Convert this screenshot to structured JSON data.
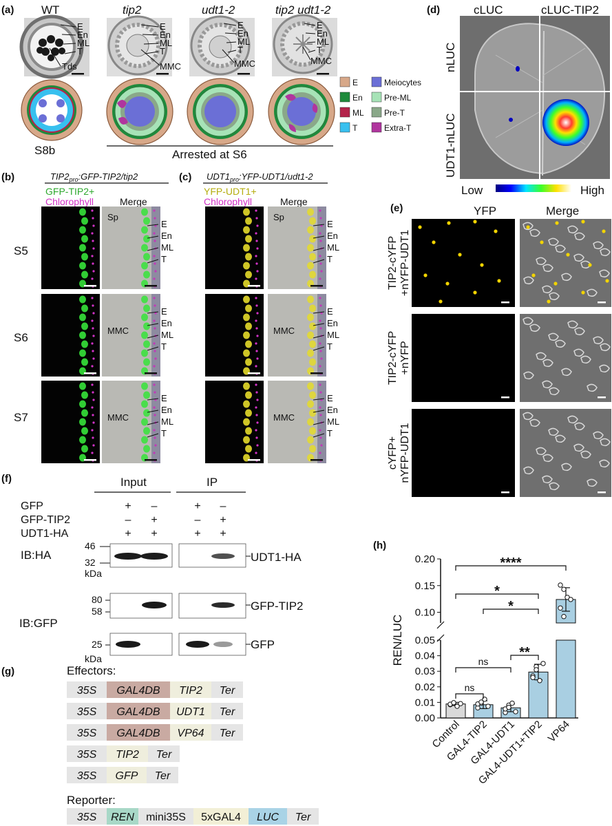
{
  "panel_labels": {
    "a": "(a)",
    "b": "(b)",
    "c": "(c)",
    "d": "(d)",
    "e": "(e)",
    "f": "(f)",
    "g": "(g)",
    "h": "(h)"
  },
  "panel_a": {
    "columns": [
      "WT",
      "tip2",
      "udt1-2",
      "tip2 udt1-2"
    ],
    "layer_labels": [
      "E",
      "En",
      "ML",
      "T"
    ],
    "tds": "Tds",
    "mmc": "MMC",
    "stage_wt": "S8b",
    "arrested": "Arrested at S6",
    "legend": [
      {
        "label": "E",
        "color": "#d7a889"
      },
      {
        "label": "En",
        "color": "#1f8a3c"
      },
      {
        "label": "ML",
        "color": "#b3234a"
      },
      {
        "label": "T",
        "color": "#38c0ef"
      },
      {
        "label": "Meiocytes",
        "color": "#6b6fd6"
      },
      {
        "label": "Pre-ML",
        "color": "#a7e3b7"
      },
      {
        "label": "Pre-T",
        "color": "#8aa889"
      },
      {
        "label": "Extra-T",
        "color": "#b0359e"
      }
    ]
  },
  "panel_b": {
    "title_main": "TIP2",
    "title_sub": "pro",
    "title_rest": ":GFP-TIP2/tip2",
    "channel1": "GFP-TIP2+",
    "channel2": "Chlorophyll",
    "merge": "Merge",
    "rows": [
      "S5",
      "S6",
      "S7"
    ],
    "sp": "Sp",
    "mmc": "MMC"
  },
  "panel_c": {
    "title_main": "UDT1",
    "title_sub": "pro",
    "title_rest": ":YFP-UDT1/udt1-2",
    "channel1": "YFP-UDT1+",
    "channel2": "Chlorophyll",
    "merge": "Merge",
    "sp": "Sp",
    "mmc": "MMC"
  },
  "panel_d": {
    "col1": "cLUC",
    "col2": "cLUC-TIP2",
    "row1": "nLUC",
    "row2": "UDT1-nLUC",
    "low": "Low",
    "high": "High"
  },
  "panel_e": {
    "col1": "YFP",
    "col2": "Merge",
    "rows": [
      [
        "TIP2-cYFP",
        "+nYFP-UDT1"
      ],
      [
        "TIP2-cYFP",
        "+nYFP"
      ],
      [
        "cYFP+",
        "nYFP-UDT1"
      ]
    ]
  },
  "panel_f": {
    "input": "Input",
    "ip": "IP",
    "row_labels": [
      "GFP",
      "GFP-TIP2",
      "UDT1-HA"
    ],
    "signs": [
      [
        "+",
        "–",
        "+",
        "–"
      ],
      [
        "–",
        "+",
        "–",
        "+"
      ],
      [
        "+",
        "+",
        "+",
        "+"
      ]
    ],
    "ib_ha": "IB:HA",
    "ib_gfp": "IB:GFP",
    "mw_ha": [
      "46",
      "32"
    ],
    "kda": "kDa",
    "mw_gfp_top": [
      "80",
      "58"
    ],
    "mw_gfp_bottom": "25",
    "bands": [
      "UDT1-HA",
      "GFP-TIP2",
      "GFP"
    ]
  },
  "panel_g": {
    "effectors_title": "Effectors:",
    "reporter_title": "Reporter:",
    "effectors": [
      [
        "35S",
        "GAL4DB",
        "TIP2",
        "Ter"
      ],
      [
        "35S",
        "GAL4DB",
        "UDT1",
        "Ter"
      ],
      [
        "35S",
        "GAL4DB",
        "VP64",
        "Ter"
      ],
      [
        "35S",
        "TIP2",
        "Ter"
      ],
      [
        "35S",
        "GFP",
        "Ter"
      ]
    ],
    "reporter": [
      "35S",
      "REN",
      "mini35S",
      "5xGAL4",
      "LUC",
      "Ter"
    ]
  },
  "chart_data": {
    "type": "bar",
    "ylabel": "REN/LUC",
    "categories": [
      "Control",
      "GAL4-TIP2",
      "GAL4-UDT1",
      "GAL4-UDT1+TIP2",
      "VP64"
    ],
    "values": [
      0.009,
      0.0085,
      0.0065,
      0.0295,
      0.124
    ],
    "errors": [
      0.001,
      0.0025,
      0.0025,
      0.005,
      0.022
    ],
    "points": [
      [
        0.0085,
        0.0095,
        0.0075,
        0.0092,
        0.0088,
        0.0098
      ],
      [
        0.0065,
        0.0095,
        0.012,
        0.0075,
        0.009,
        0.0102
      ],
      [
        0.0035,
        0.0082,
        0.0095,
        0.004,
        0.0058,
        0.0068
      ],
      [
        0.027,
        0.033,
        0.024,
        0.035,
        0.026,
        0.031
      ],
      [
        0.151,
        0.143,
        0.128,
        0.124,
        0.108,
        0.092
      ]
    ],
    "broken_axis": {
      "lower": [
        0,
        0.05
      ],
      "upper": [
        0.08,
        0.2
      ]
    },
    "yticks_lower": [
      "0.00",
      "0.01",
      "0.02",
      "0.03",
      "0.04",
      "0.05"
    ],
    "yticks_upper": [
      "0.10",
      "0.15",
      "0.20"
    ],
    "significance": [
      {
        "from": 0,
        "to": 4,
        "label": "****"
      },
      {
        "from": 0,
        "to": 3,
        "label": "*"
      },
      {
        "from": 1,
        "to": 3,
        "label": "*"
      },
      {
        "from": 2,
        "to": 3,
        "label": "**"
      },
      {
        "from": 0,
        "to": 2,
        "label": "ns"
      },
      {
        "from": 0,
        "to": 1,
        "label": "ns"
      }
    ],
    "bar_colors": [
      "#d9d9d9",
      "#a9cfe2",
      "#a9cfe2",
      "#a9cfe2",
      "#a9cfe2"
    ]
  }
}
